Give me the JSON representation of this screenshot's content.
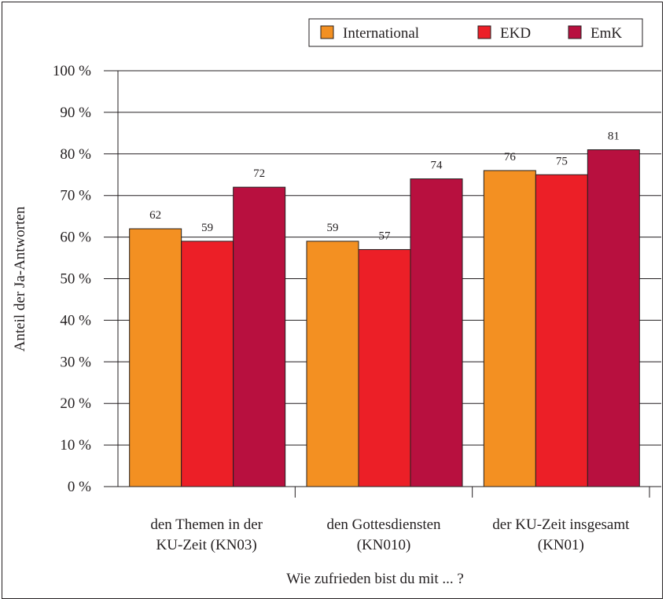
{
  "chart_data": {
    "type": "bar",
    "categories": [
      [
        "den Themen in der",
        "KU-Zeit (KN03)"
      ],
      [
        "den Gottesdiensten",
        "(KN010)"
      ],
      [
        "der KU-Zeit insgesamt",
        "(KN01)"
      ]
    ],
    "series": [
      {
        "name": "International",
        "values": [
          62,
          59,
          76
        ],
        "color": "#f39022"
      },
      {
        "name": "EKD",
        "values": [
          59,
          57,
          75
        ],
        "color": "#ec1f27"
      },
      {
        "name": "EmK",
        "values": [
          72,
          74,
          81
        ],
        "color": "#b8103f"
      }
    ],
    "xlabel": "Wie zufrieden bist du mit ... ?",
    "ylabel": "Anteil der Ja-Antworten",
    "ylim": [
      0,
      100
    ],
    "yticks": [
      0,
      10,
      20,
      30,
      40,
      50,
      60,
      70,
      80,
      90,
      100
    ],
    "ytick_suffix": " %",
    "grid": "horizontal",
    "legend": "top-right"
  }
}
